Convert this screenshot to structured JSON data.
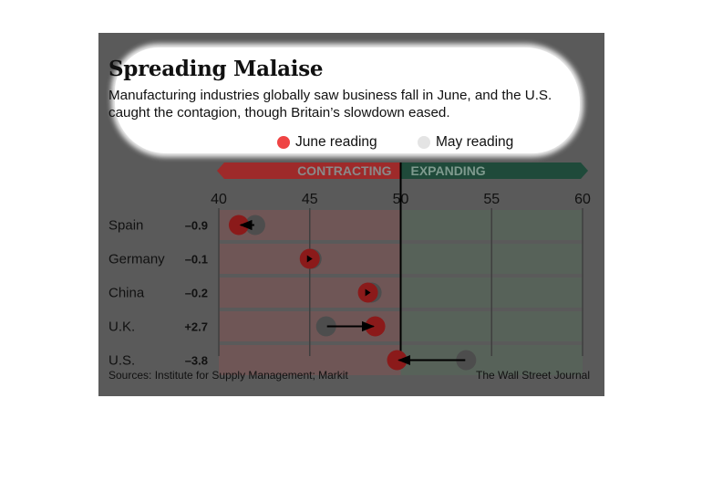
{
  "title": "Spreading Malaise",
  "subtitle": "Manufacturing industries globally saw business fall in June, and the U.S. caught the contagion, though Britain’s slowdown eased.",
  "legend": {
    "june_label": "June reading",
    "may_label": "May reading"
  },
  "zones": {
    "contracting": "CONTRACTING",
    "expanding": "EXPANDING"
  },
  "source": "Sources: Institute for Supply Management; Markit",
  "credit": "The Wall Street Journal",
  "colors": {
    "june": "#8b1a1a",
    "may": "#4d4d4d",
    "contracting": "#9e2a2a",
    "expanding": "#1f4a3a",
    "background": "#5a5a5a"
  },
  "chart_data": {
    "type": "dot",
    "xlim": [
      40,
      60
    ],
    "xticks": [
      40,
      45,
      50,
      55,
      60
    ],
    "categories": [
      "Spain",
      "Germany",
      "China",
      "U.K.",
      "U.S."
    ],
    "changes": [
      "–0.9",
      "–0.1",
      "–0.2",
      "+2.7",
      "–3.8"
    ],
    "series": [
      {
        "name": "June reading",
        "values": [
          41.1,
          45.0,
          48.2,
          48.6,
          49.8
        ]
      },
      {
        "name": "May reading",
        "values": [
          42.0,
          45.1,
          48.4,
          45.9,
          53.6
        ]
      }
    ],
    "threshold": 50
  }
}
